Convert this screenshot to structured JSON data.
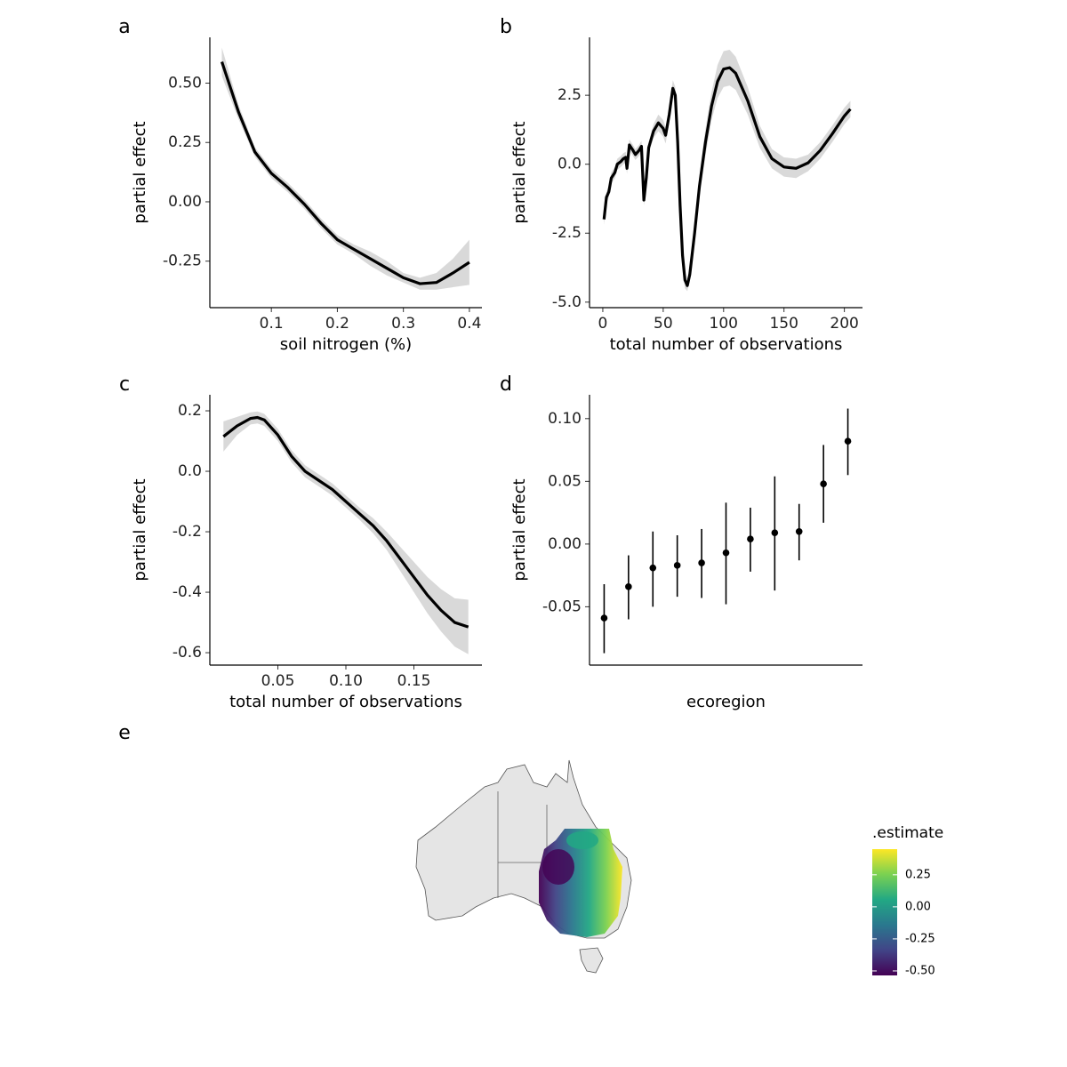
{
  "chart_data": [
    {
      "type": "line",
      "panel": "a",
      "xlabel": "soil nitrogen (%)",
      "ylabel": "partial effect",
      "xlim": [
        0.0068,
        0.419
      ],
      "ylim": [
        -0.446,
        0.693
      ],
      "xticks": [
        0.1,
        0.2,
        0.3,
        0.4
      ],
      "yticks": [
        {
          "value": 0.5,
          "label": "0.50"
        },
        0.25,
        {
          "value": 0,
          "label": "0.00"
        },
        -0.25
      ],
      "line_color": "#000000",
      "band_color": "#d9d9d9",
      "x": [
        0.025,
        0.05,
        0.075,
        0.1,
        0.125,
        0.15,
        0.175,
        0.2,
        0.225,
        0.25,
        0.275,
        0.3,
        0.325,
        0.35,
        0.375,
        0.4
      ],
      "values": [
        0.59,
        0.38,
        0.21,
        0.12,
        0.06,
        -0.01,
        -0.09,
        -0.16,
        -0.2,
        -0.24,
        -0.28,
        -0.32,
        -0.345,
        -0.34,
        -0.3,
        -0.255
      ],
      "upper": [
        0.65,
        0.41,
        0.23,
        0.14,
        0.08,
        0.01,
        -0.07,
        -0.14,
        -0.18,
        -0.21,
        -0.25,
        -0.3,
        -0.32,
        -0.3,
        -0.24,
        -0.16
      ],
      "lower": [
        0.53,
        0.35,
        0.19,
        0.1,
        0.04,
        -0.03,
        -0.11,
        -0.18,
        -0.22,
        -0.27,
        -0.31,
        -0.34,
        -0.37,
        -0.37,
        -0.36,
        -0.35
      ]
    },
    {
      "type": "line",
      "panel": "b",
      "xlabel": "total number of observations",
      "ylabel": "partial effect",
      "xlim": [
        -11,
        215
      ],
      "ylim": [
        -5.2,
        4.6
      ],
      "xticks": [
        0,
        50,
        100,
        150,
        200
      ],
      "yticks": [
        2.5,
        {
          "value": 0,
          "label": "0.0"
        },
        -2.5,
        {
          "value": -5,
          "label": "-5.0"
        }
      ],
      "line_color": "#000000",
      "band_color": "#d9d9d9",
      "x": [
        1,
        3,
        5,
        7,
        10,
        12,
        15,
        17,
        19,
        20,
        22,
        25,
        27,
        30,
        32,
        34,
        36,
        38,
        42,
        46,
        50,
        52,
        55,
        58,
        60,
        62,
        64,
        66,
        68,
        70,
        72,
        76,
        80,
        85,
        90,
        95,
        100,
        105,
        110,
        120,
        130,
        140,
        150,
        160,
        170,
        180,
        190,
        200,
        205
      ],
      "values": [
        -2,
        -1.2,
        -1.0,
        -0.5,
        -0.3,
        0.0,
        0.1,
        0.2,
        0.25,
        -0.15,
        0.7,
        0.5,
        0.35,
        0.5,
        0.65,
        -1.3,
        -0.5,
        0.6,
        1.2,
        1.5,
        1.3,
        1.05,
        1.8,
        2.75,
        2.5,
        0.8,
        -1.5,
        -3.3,
        -4.2,
        -4.4,
        -4.0,
        -2.5,
        -0.8,
        0.8,
        2.1,
        3.0,
        3.45,
        3.5,
        3.3,
        2.3,
        1.0,
        0.2,
        -0.1,
        -0.15,
        0.05,
        0.5,
        1.1,
        1.75,
        2.0
      ],
      "upper": [
        -1.8,
        -1.0,
        -0.8,
        -0.3,
        -0.1,
        0.2,
        0.3,
        0.4,
        0.45,
        0.05,
        0.9,
        0.7,
        0.55,
        0.7,
        0.85,
        -1.1,
        -0.3,
        0.8,
        1.45,
        1.8,
        1.6,
        1.35,
        2.1,
        3.05,
        2.8,
        1.1,
        -1.2,
        -3.0,
        -3.9,
        -4.2,
        -3.8,
        -2.2,
        -0.4,
        1.3,
        2.6,
        3.6,
        4.1,
        4.15,
        3.9,
        2.8,
        1.4,
        0.55,
        0.25,
        0.2,
        0.35,
        0.8,
        1.4,
        2.05,
        2.3
      ],
      "lower": [
        -2.2,
        -1.4,
        -1.2,
        -0.7,
        -0.5,
        -0.2,
        -0.1,
        0.0,
        0.05,
        -0.35,
        0.5,
        0.3,
        0.15,
        0.3,
        0.45,
        -1.5,
        -0.7,
        0.4,
        0.95,
        1.2,
        1.0,
        0.75,
        1.5,
        2.45,
        2.2,
        0.5,
        -1.8,
        -3.6,
        -4.5,
        -4.6,
        -4.2,
        -2.8,
        -1.2,
        0.3,
        1.6,
        2.4,
        2.8,
        2.85,
        2.7,
        1.8,
        0.6,
        -0.15,
        -0.45,
        -0.5,
        -0.25,
        0.2,
        0.8,
        1.45,
        1.7
      ]
    },
    {
      "type": "line",
      "panel": "c",
      "xlabel": "total number of observations",
      "ylabel": "partial effect",
      "xlim": [
        0.0,
        0.2
      ],
      "ylim": [
        -0.641,
        0.253
      ],
      "xticks": [
        0.05,
        {
          "value": 0.1,
          "label": "0.10"
        },
        0.15
      ],
      "yticks": [
        0.2,
        {
          "value": 0,
          "label": "0.0"
        },
        -0.2,
        -0.4,
        -0.6
      ],
      "line_color": "#000000",
      "band_color": "#d9d9d9",
      "x": [
        0.01,
        0.02,
        0.03,
        0.035,
        0.04,
        0.05,
        0.06,
        0.07,
        0.08,
        0.09,
        0.1,
        0.11,
        0.12,
        0.13,
        0.14,
        0.15,
        0.16,
        0.17,
        0.18,
        0.19
      ],
      "values": [
        0.115,
        0.15,
        0.175,
        0.178,
        0.17,
        0.12,
        0.05,
        0.0,
        -0.03,
        -0.06,
        -0.1,
        -0.14,
        -0.18,
        -0.23,
        -0.29,
        -0.35,
        -0.41,
        -0.46,
        -0.5,
        -0.515
      ],
      "upper": [
        0.165,
        0.18,
        0.195,
        0.198,
        0.19,
        0.14,
        0.07,
        0.02,
        -0.01,
        -0.04,
        -0.08,
        -0.12,
        -0.155,
        -0.2,
        -0.25,
        -0.3,
        -0.35,
        -0.39,
        -0.42,
        -0.425
      ],
      "lower": [
        0.065,
        0.12,
        0.155,
        0.158,
        0.15,
        0.1,
        0.03,
        -0.02,
        -0.05,
        -0.08,
        -0.12,
        -0.16,
        -0.205,
        -0.26,
        -0.33,
        -0.4,
        -0.47,
        -0.53,
        -0.58,
        -0.605
      ]
    },
    {
      "type": "pointrange",
      "panel": "d",
      "xlabel": "ecoregion",
      "ylabel": "partial effect",
      "ylim": [
        -0.0965,
        0.119
      ],
      "yticks": [
        {
          "value": 0.1,
          "label": "0.10"
        },
        0.05,
        {
          "value": 0,
          "label": "0.00"
        },
        -0.05
      ],
      "color": "#000000",
      "categories": [
        null,
        null,
        null,
        null,
        null,
        null,
        null,
        null,
        null,
        null,
        null
      ],
      "values": [
        -0.059,
        -0.034,
        -0.019,
        -0.017,
        -0.015,
        -0.007,
        0.004,
        0.009,
        0.01,
        0.048,
        0.082
      ],
      "lower": [
        -0.087,
        -0.06,
        -0.05,
        -0.042,
        -0.043,
        -0.048,
        -0.022,
        -0.037,
        -0.013,
        0.017,
        0.055
      ],
      "upper": [
        -0.032,
        -0.009,
        0.01,
        0.007,
        0.012,
        0.033,
        0.029,
        0.054,
        0.032,
        0.079,
        0.108
      ]
    },
    {
      "type": "map",
      "panel": "e",
      "legend_title": ".estimate",
      "colorbar_lim": [
        -0.535,
        0.45
      ],
      "colorbar_ticks": [
        0.25,
        {
          "value": 0,
          "label": "0.00"
        },
        -0.25,
        {
          "value": -0.5,
          "label": "-0.50"
        }
      ],
      "colors": [
        "#440154",
        "#414487",
        "#2a788e",
        "#22a884",
        "#7ad151",
        "#fde725"
      ]
    }
  ]
}
